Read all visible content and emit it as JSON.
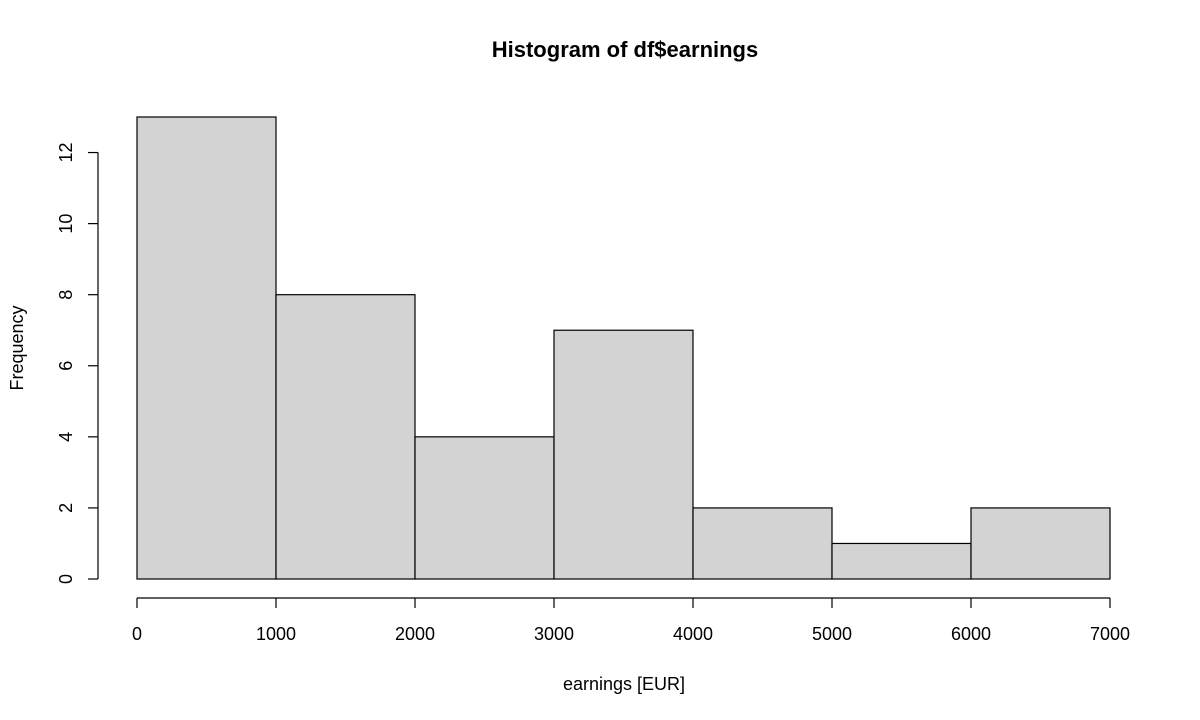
{
  "chart_data": {
    "type": "bar",
    "title": "Histogram of df$earnings",
    "xlabel": "earnings [EUR]",
    "ylabel": "Frequency",
    "bins": [
      {
        "from": 0,
        "to": 1000,
        "count": 13
      },
      {
        "from": 1000,
        "to": 2000,
        "count": 8
      },
      {
        "from": 2000,
        "to": 3000,
        "count": 4
      },
      {
        "from": 3000,
        "to": 4000,
        "count": 7
      },
      {
        "from": 4000,
        "to": 5000,
        "count": 2
      },
      {
        "from": 5000,
        "to": 6000,
        "count": 1
      },
      {
        "from": 6000,
        "to": 7000,
        "count": 2
      }
    ],
    "xlim": [
      0,
      7000
    ],
    "ylim": [
      0,
      13
    ],
    "x_ticks": [
      0,
      1000,
      2000,
      3000,
      4000,
      5000,
      6000,
      7000
    ],
    "y_ticks": [
      0,
      2,
      4,
      6,
      8,
      10,
      12
    ],
    "bar_color": "#d3d3d3",
    "grid": false,
    "legend": "none"
  }
}
